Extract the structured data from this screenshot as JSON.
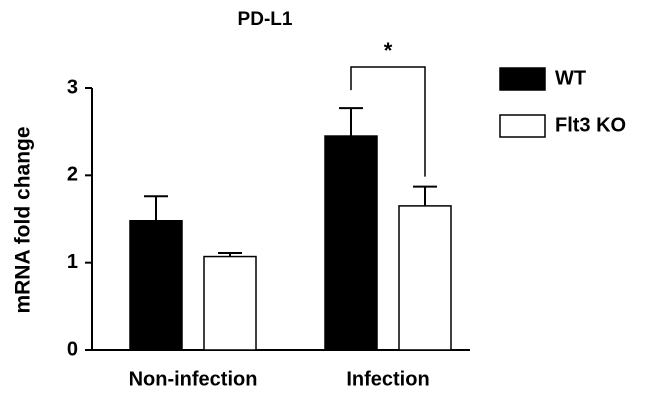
{
  "chart_data": {
    "type": "bar",
    "title": "PD-L1",
    "y_label": "mRNA fold change",
    "categories": [
      "Non-infection",
      "Infection"
    ],
    "series": [
      {
        "name": "WT",
        "color": "#000000",
        "values": [
          1.48,
          2.45
        ],
        "errors": [
          0.28,
          0.32
        ]
      },
      {
        "name": "Flt3 KO",
        "color": "#ffffff",
        "values": [
          1.07,
          1.65
        ],
        "errors": [
          0.04,
          0.22
        ]
      }
    ],
    "ylim": [
      0,
      3
    ],
    "yticks": [
      0,
      1,
      2,
      3
    ],
    "annotation": "*",
    "legend": "right"
  }
}
